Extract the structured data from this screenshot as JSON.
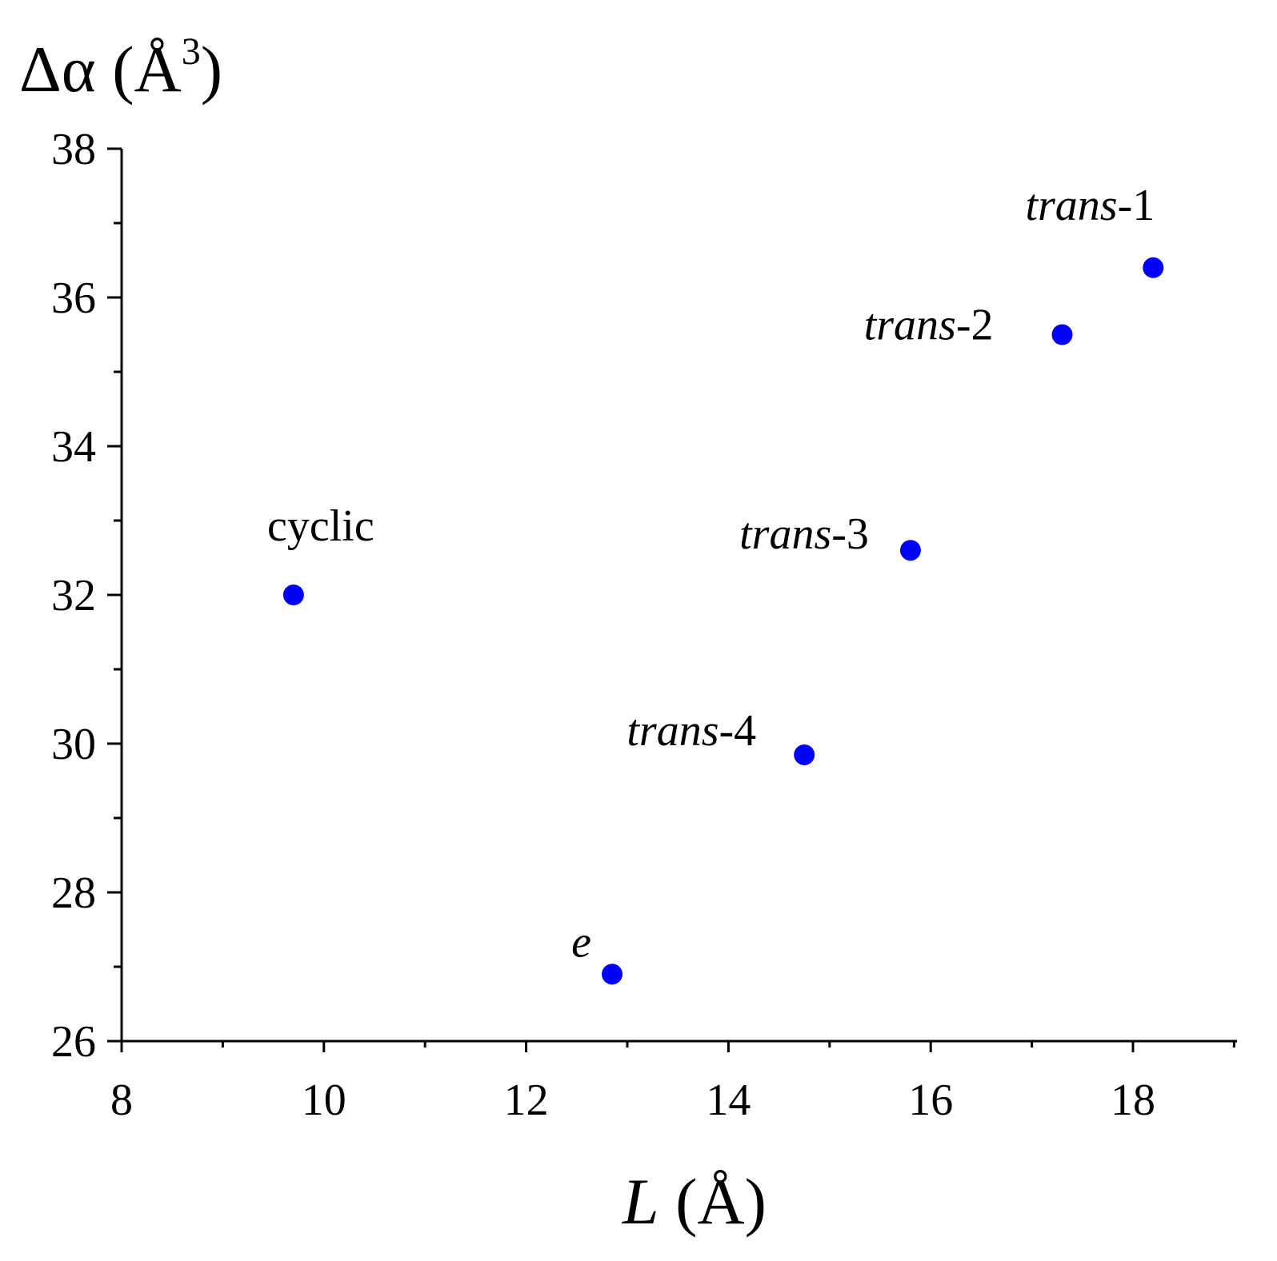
{
  "chart_data": {
    "type": "scatter",
    "title": "",
    "xlabel": {
      "symbol": "L",
      "unit": " (Å)"
    },
    "ylabel": {
      "symbol": "Δα (Å",
      "superscript": "3",
      "close": ")"
    },
    "xlim": [
      8,
      19
    ],
    "ylim": [
      26,
      38
    ],
    "x_major_ticks": [
      8,
      10,
      12,
      14,
      16,
      18
    ],
    "x_minor_ticks": [
      9,
      11,
      13,
      15,
      17,
      19
    ],
    "y_major_ticks": [
      26,
      28,
      30,
      32,
      34,
      36,
      38
    ],
    "y_minor_ticks": [
      27,
      29,
      31,
      33,
      35,
      37
    ],
    "grid": false,
    "marker_color": "#0000ff",
    "points": [
      {
        "x": 9.7,
        "y": 32.0,
        "label": "cyclic",
        "italic_part": "",
        "plain_part": "cyclic"
      },
      {
        "x": 12.85,
        "y": 26.9,
        "label": "e",
        "italic_part": "e",
        "plain_part": ""
      },
      {
        "x": 14.75,
        "y": 29.85,
        "label": "trans-4",
        "italic_part": "trans",
        "plain_part": "-4"
      },
      {
        "x": 15.8,
        "y": 32.6,
        "label": "trans-3",
        "italic_part": "trans",
        "plain_part": "-3"
      },
      {
        "x": 17.3,
        "y": 35.5,
        "label": "trans-2",
        "italic_part": "trans",
        "plain_part": "-2"
      },
      {
        "x": 18.2,
        "y": 36.4,
        "label": "trans-1",
        "italic_part": "trans",
        "plain_part": "-1"
      }
    ]
  }
}
